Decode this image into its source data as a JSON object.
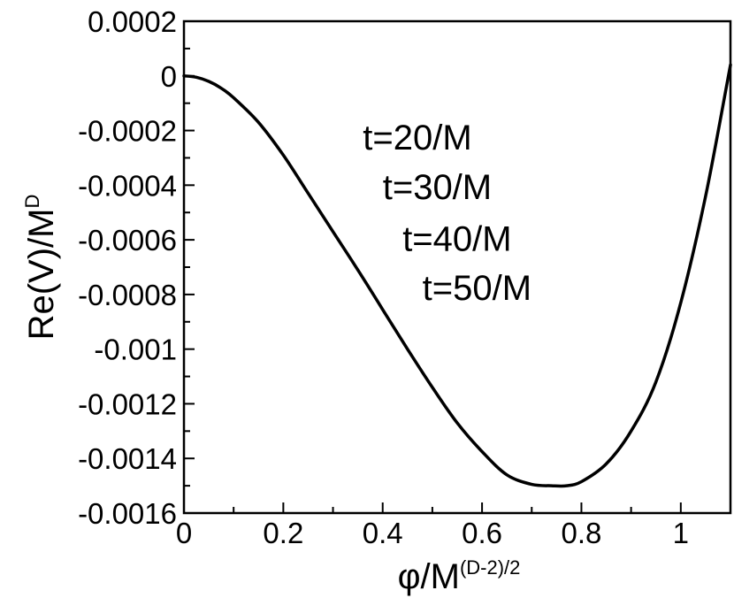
{
  "chart_data": {
    "type": "line",
    "title": "",
    "xlabel": {
      "base": "φ/M",
      "superscript": "(D-2)/2"
    },
    "ylabel": {
      "base": "Re(V)/M",
      "superscript": "D"
    },
    "xlim": [
      0,
      1.1
    ],
    "ylim": [
      -0.0016,
      0.0002
    ],
    "xticks": [
      {
        "value": 0,
        "label": "0"
      },
      {
        "value": 0.2,
        "label": "0.2"
      },
      {
        "value": 0.4,
        "label": "0.4"
      },
      {
        "value": 0.6,
        "label": "0.6"
      },
      {
        "value": 0.8,
        "label": "0.8"
      },
      {
        "value": 1,
        "label": "1"
      }
    ],
    "yticks": [
      {
        "value": 0.0002,
        "label": "0.0002"
      },
      {
        "value": 0,
        "label": "0"
      },
      {
        "value": -0.0002,
        "label": "-0.0002"
      },
      {
        "value": -0.0004,
        "label": "-0.0004"
      },
      {
        "value": -0.0006,
        "label": "-0.0006"
      },
      {
        "value": -0.0008,
        "label": "-0.0008"
      },
      {
        "value": -0.001,
        "label": "-0.001"
      },
      {
        "value": -0.0012,
        "label": "-0.0012"
      },
      {
        "value": -0.0014,
        "label": "-0.0014"
      },
      {
        "value": -0.0016,
        "label": "-0.0016"
      }
    ],
    "grid": false,
    "annotations": [
      {
        "text": "t=20/M",
        "x": 0.36,
        "y": -0.00027
      },
      {
        "text": "t=30/M",
        "x": 0.4,
        "y": -0.00045
      },
      {
        "text": "t=40/M",
        "x": 0.44,
        "y": -0.00064
      },
      {
        "text": "t=50/M",
        "x": 0.48,
        "y": -0.00082
      }
    ],
    "series": [
      {
        "color": "#000000",
        "x": [
          0,
          0.025,
          0.05,
          0.075,
          0.1,
          0.15,
          0.2,
          0.25,
          0.3,
          0.35,
          0.4,
          0.45,
          0.5,
          0.55,
          0.6,
          0.65,
          0.7,
          0.74,
          0.77,
          0.8,
          0.85,
          0.9,
          0.95,
          1.0,
          1.05,
          1.1
        ],
        "y": [
          0,
          -5e-06,
          -2e-05,
          -4.5e-05,
          -8e-05,
          -0.00017,
          -0.00029,
          -0.00043,
          -0.00057,
          -0.00071,
          -0.000855,
          -0.001,
          -0.00114,
          -0.00127,
          -0.001375,
          -0.00146,
          -0.001495,
          -0.0015,
          -0.0015,
          -0.001485,
          -0.00142,
          -0.0013,
          -0.00112,
          -0.00083,
          -0.00044,
          4e-05
        ]
      }
    ]
  }
}
